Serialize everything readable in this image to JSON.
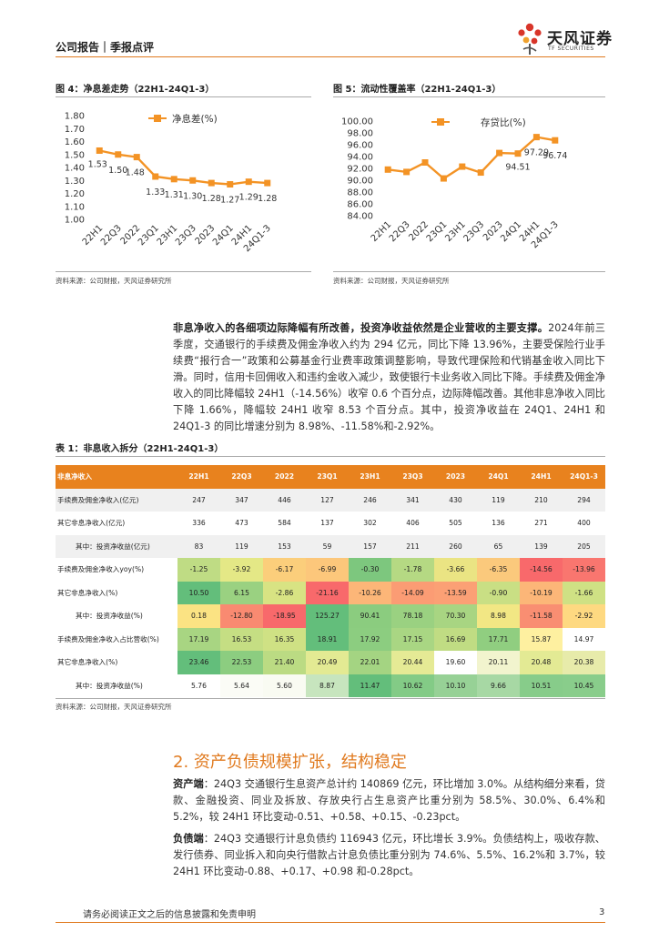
{
  "header": {
    "report_type": "公司报告｜季报点评",
    "logo_cn": "天风证券",
    "logo_en": "TF SECURITIES",
    "colors": {
      "accent": "#e07a1f",
      "logo_red": "#d8352a"
    }
  },
  "figure4": {
    "title": "图 4：净息差走势（22H1-24Q1-3）",
    "source": "资料来源：公司财报，天风证券研究所"
  },
  "figure5": {
    "title": "图 5：流动性覆盖率（22H1-24Q1-3）",
    "source": "资料来源：公司财报，天风证券研究所"
  },
  "chart_data": [
    {
      "type": "line",
      "title": "净息差走势",
      "legend": "净息差(%)",
      "categories": [
        "22H1",
        "22Q3",
        "2022",
        "23Q1",
        "23H1",
        "23Q3",
        "2023",
        "24Q1",
        "24H1",
        "24Q1-3"
      ],
      "values": [
        1.53,
        1.5,
        1.48,
        1.33,
        1.31,
        1.3,
        1.28,
        1.27,
        1.29,
        1.28
      ],
      "value_labels": [
        "1.53",
        "1.50",
        "1.48",
        "1.33",
        "1.31",
        "1.30",
        "1.28",
        "1.27",
        "1.29",
        "1.28"
      ],
      "yticks": [
        "1.80",
        "1.70",
        "1.60",
        "1.50",
        "1.40",
        "1.30",
        "1.20",
        "1.10",
        "1.00"
      ],
      "ylim": [
        1.0,
        1.8
      ],
      "color": "#f39325"
    },
    {
      "type": "line",
      "title": "流动性覆盖率",
      "legend": "存贷比(%)",
      "categories": [
        "22H1",
        "22Q3",
        "2022",
        "23Q1",
        "23H1",
        "23Q3",
        "2023",
        "24Q1",
        "24H1",
        "24Q1-3"
      ],
      "values": [
        91.8,
        91.4,
        93.0,
        90.3,
        92.3,
        91.3,
        94.6,
        94.51,
        97.29,
        96.74
      ],
      "labeled": [
        {
          "index": 7,
          "text": "94.51"
        },
        {
          "index": 8,
          "text": "97.29"
        },
        {
          "index": 9,
          "text": "96.74"
        }
      ],
      "yticks": [
        "100.00",
        "98.00",
        "96.00",
        "94.00",
        "92.00",
        "90.00",
        "88.00",
        "86.00",
        "84.00"
      ],
      "ylim": [
        84,
        100
      ],
      "color": "#f39325"
    }
  ],
  "paragraph1": {
    "lead": "非息净收入的各细项边际降幅有所改善，投资净收益依然是企业营收的主要支撑。",
    "body": "2024年前三季度，交通银行的手续费及佣金净收入约为 294 亿元，同比下降 13.96%，主要受保险行业手续费“报行合一”政策和公募基金行业费率政策调整影响，导致代理保险和代销基金收入同比下滑。同时，信用卡回佣收入和违约金收入减少，致使银行卡业务收入同比下降。手续费及佣金净收入的同比降幅较 24H1（-14.56%）收窄 0.6 个百分点，边际降幅改善。其他非息净收入同比下降 1.66%，降幅较 24H1 收窄 8.53 个百分点。其中，投资净收益在 24Q1、24H1 和 24Q1-3 的同比增速分别为 8.98%、-11.58%和-2.92%。"
  },
  "table1": {
    "title": "表 1：非息收入拆分（22H1-24Q1-3）",
    "source": "资料来源：公司财报，天风证券研究所",
    "header": [
      "非息净收入",
      "22H1",
      "22Q3",
      "2022",
      "23Q1",
      "23H1",
      "23Q3",
      "2023",
      "24Q1",
      "24H1",
      "24Q1-3"
    ],
    "rows": [
      {
        "label": "手续费及佣金净收入(亿元)",
        "indent": false,
        "cells": [
          "247",
          "347",
          "446",
          "127",
          "246",
          "341",
          "430",
          "119",
          "210",
          "294"
        ]
      },
      {
        "label": "其它非息净收入(亿元)",
        "indent": false,
        "cells": [
          "336",
          "473",
          "584",
          "137",
          "302",
          "406",
          "505",
          "136",
          "271",
          "400"
        ]
      },
      {
        "label": "其中：投资净收益(亿元)",
        "indent": true,
        "cells": [
          "83",
          "119",
          "153",
          "59",
          "157",
          "211",
          "260",
          "65",
          "139",
          "205"
        ]
      },
      {
        "label": "手续费及佣金净收入yoy(%)",
        "indent": false,
        "cells": [
          "-1.25",
          "-3.92",
          "-6.17",
          "-6.99",
          "-0.30",
          "-1.78",
          "-3.66",
          "-6.35",
          "-14.56",
          "-13.96"
        ],
        "colors": [
          "#bfdc84",
          "#e4e886",
          "#fbce7b",
          "#fcc77b",
          "#7dc77e",
          "#b5d983",
          "#eae483",
          "#fbc97c",
          "#f8696b",
          "#f9766f"
        ]
      },
      {
        "label": "其它非息净收入(%)",
        "indent": false,
        "cells": [
          "10.50",
          "6.15",
          "-2.86",
          "-21.16",
          "-10.26",
          "-14.09",
          "-13.59",
          "-0.90",
          "-10.19",
          "-1.66"
        ],
        "colors": [
          "#63be7b",
          "#9ad181",
          "#d8e383",
          "#f8696b",
          "#fcb678",
          "#fb9c74",
          "#fba075",
          "#c9df84",
          "#fcb678",
          "#cfe184"
        ]
      },
      {
        "label": "其中：投资净收益(%)",
        "indent": true,
        "cells": [
          "0.18",
          "-12.80",
          "-18.95",
          "125.27",
          "90.41",
          "78.18",
          "70.30",
          "8.98",
          "-11.58",
          "-2.92"
        ],
        "colors": [
          "#fbe383",
          "#f98a71",
          "#f8696b",
          "#63be7b",
          "#8bcc7f",
          "#9ad181",
          "#a8d582",
          "#f2e784",
          "#f98e72",
          "#fed981"
        ]
      },
      {
        "label": "手续费及佣金净收入占比营收(%)",
        "indent": false,
        "cells": [
          "17.19",
          "16.53",
          "16.35",
          "18.91",
          "17.92",
          "17.15",
          "16.69",
          "17.71",
          "15.87",
          "14.97"
        ],
        "colors": [
          "#a8d582",
          "#c5de83",
          "#cfe184",
          "#63be7b",
          "#8ccd80",
          "#a9d683",
          "#c0dc83",
          "#90ce80",
          "#fef0a0",
          "#ffffff"
        ]
      },
      {
        "label": "其它非息净收入(%)",
        "indent": false,
        "cells": [
          "23.46",
          "22.53",
          "21.40",
          "20.49",
          "22.01",
          "20.44",
          "19.60",
          "20.11",
          "20.48",
          "20.38"
        ],
        "colors": [
          "#63be7b",
          "#8ccd80",
          "#bbdb83",
          "#e3ea93",
          "#a4d482",
          "#e5ea95",
          "#ffffff",
          "#f2f4ce",
          "#e3ea94",
          "#e7ebaa"
        ]
      },
      {
        "label": "其中：投资净收益(%)",
        "indent": true,
        "cells": [
          "5.76",
          "5.64",
          "5.60",
          "8.87",
          "11.47",
          "10.62",
          "10.10",
          "9.66",
          "10.51",
          "10.45"
        ],
        "colors": [
          "#ffffff",
          "#fbfcf6",
          "#f9fbf2",
          "#c7e5be",
          "#63be7b",
          "#83cb86",
          "#97d196",
          "#a7d8a4",
          "#87cc8a",
          "#89cd8b"
        ]
      }
    ]
  },
  "section2": {
    "title": "2. 资产负债规模扩张，结构稳定",
    "asset_label": "资产端",
    "asset_text": "：24Q3 交通银行生息资产总计约 140869 亿元，环比增加 3.0%。从结构细分来看，贷款、金融投资、同业及拆放、存放央行占生息资产比重分别为 58.5%、30.0%、6.4%和 5.2%，较 24H1 环比变动-0.51、+0.58、+0.15、-0.23pct。",
    "liab_label": "负债端",
    "liab_text": "：24Q3 交通银行计息负债约 116943 亿元，环比增长 3.9%。负债结构上，吸收存款、发行债券、同业拆入和向央行借款占计息负债比重分别为 74.6%、5.5%、16.2%和 3.7%，较 24H1 环比变动-0.88、+0.17、+0.98 和-0.28pct。"
  },
  "footer": {
    "disclaimer": "请务必阅读正文之后的信息披露和免责申明",
    "page": "3"
  }
}
